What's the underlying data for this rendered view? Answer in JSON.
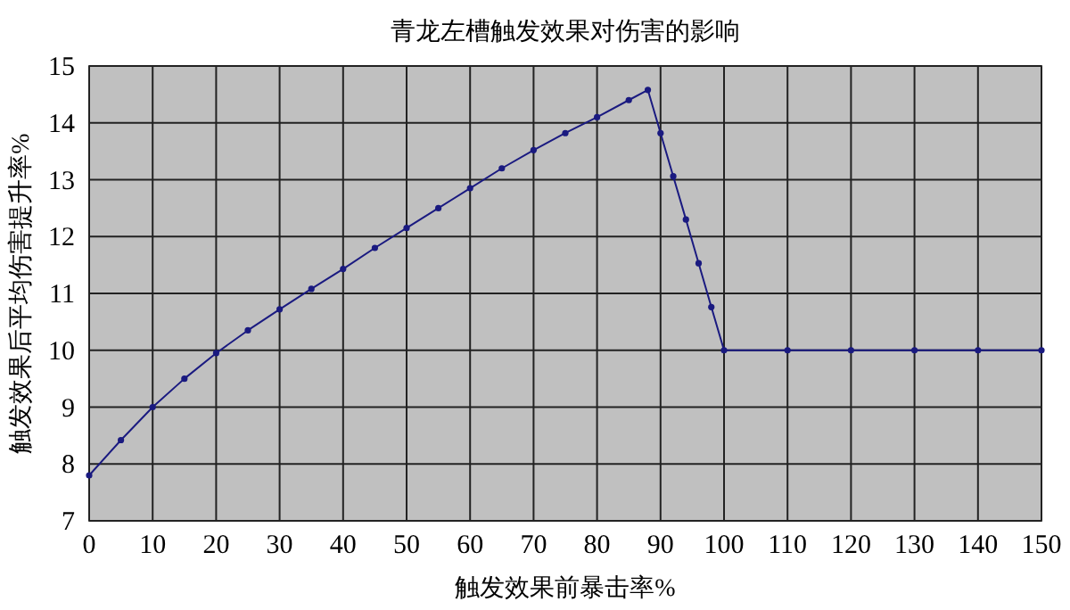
{
  "chart_data": {
    "type": "line",
    "title": "青龙左槽触发效果对伤害的影响",
    "xlabel": "触发效果前暴击率%",
    "ylabel": "触发效果后平均伤害提升率%",
    "xlim": [
      0,
      150
    ],
    "xticks": [
      0,
      10,
      20,
      30,
      40,
      50,
      60,
      70,
      80,
      90,
      100,
      110,
      120,
      130,
      140,
      150
    ],
    "ylim": [
      7,
      15
    ],
    "yticks": [
      7,
      8,
      9,
      10,
      11,
      12,
      13,
      14,
      15
    ],
    "grid": true,
    "marker": "circle",
    "line_style": "solid",
    "series": [
      {
        "color": "#1a1a80",
        "x": [
          0,
          5,
          10,
          15,
          20,
          25,
          30,
          35,
          40,
          45,
          50,
          55,
          60,
          65,
          70,
          75,
          80,
          85,
          88,
          90,
          92,
          94,
          96,
          98,
          100,
          110,
          120,
          130,
          140,
          150
        ],
        "values": [
          7.8,
          8.42,
          9.0,
          9.5,
          9.95,
          10.35,
          10.72,
          11.08,
          11.43,
          11.8,
          12.15,
          12.5,
          12.85,
          13.2,
          13.52,
          13.82,
          14.1,
          14.4,
          14.58,
          13.82,
          13.06,
          12.3,
          11.53,
          10.76,
          10,
          10,
          10,
          10,
          10,
          10
        ]
      }
    ]
  }
}
